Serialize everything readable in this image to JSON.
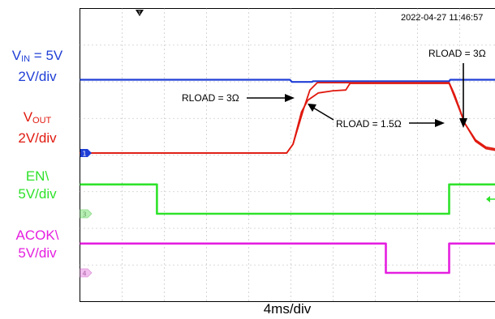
{
  "timestamp": "2022-04-27 11:46:57",
  "x_axis_label": "4ms/div",
  "colors": {
    "vin": "#1f3fd6",
    "vout": "#e0190f",
    "en": "#2ee22a",
    "acok": "#e51fe0"
  },
  "channel_labels": {
    "vin": {
      "name_main": "V",
      "name_sub": "IN",
      "name_rest": " = 5V",
      "scale": "2V/div"
    },
    "vout": {
      "name_main": "V",
      "name_sub": "OUT",
      "scale": "2V/div"
    },
    "en": {
      "name": "EN\\",
      "scale": "5V/div"
    },
    "acok": {
      "name": "ACOK\\",
      "scale": "5V/div"
    }
  },
  "channel_markers": [
    "1",
    "3",
    "4"
  ],
  "annotations": [
    "RLOAD = 3Ω",
    "RLOAD = 1.5Ω",
    "RLOAD = 3Ω"
  ],
  "chart_data": {
    "type": "line",
    "x_unit": "ms",
    "x_range": [
      0,
      40
    ],
    "series": [
      {
        "name": "VIN",
        "points": [
          [
            0,
            5.0
          ],
          [
            19.9,
            5.0
          ],
          [
            20.1,
            4.85
          ],
          [
            22.0,
            4.85
          ],
          [
            22.1,
            4.9
          ],
          [
            35.0,
            4.9
          ],
          [
            35.1,
            5.0
          ],
          [
            40,
            5.0
          ]
        ]
      },
      {
        "name": "VOUT (RLOAD = 3Ω)",
        "points": [
          [
            0,
            0
          ],
          [
            19.6,
            0
          ],
          [
            20.2,
            0.6
          ],
          [
            21.2,
            3.0
          ],
          [
            21.8,
            4.3
          ],
          [
            22.5,
            4.8
          ],
          [
            30.0,
            4.8
          ],
          [
            35.0,
            4.8
          ],
          [
            35.5,
            4.0
          ],
          [
            36.5,
            2.0
          ],
          [
            37.5,
            0.8
          ],
          [
            38.5,
            0.3
          ],
          [
            40,
            0.1
          ]
        ]
      },
      {
        "name": "VOUT (RLOAD = 1.5Ω)",
        "points": [
          [
            0,
            0
          ],
          [
            19.6,
            0
          ],
          [
            20.2,
            0.6
          ],
          [
            21.0,
            2.8
          ],
          [
            21.6,
            3.6
          ],
          [
            22.6,
            4.1
          ],
          [
            24.0,
            4.25
          ],
          [
            25.2,
            4.3
          ],
          [
            25.6,
            4.75
          ],
          [
            35.0,
            4.75
          ],
          [
            35.2,
            4.4
          ],
          [
            36.5,
            2.0
          ],
          [
            37.5,
            0.9
          ],
          [
            38.5,
            0.4
          ],
          [
            40,
            0.2
          ]
        ]
      },
      {
        "name": "EN\\",
        "points": [
          [
            0,
            5.0
          ],
          [
            7.3,
            5.0
          ],
          [
            7.3,
            0
          ],
          [
            35.0,
            0
          ],
          [
            35.0,
            5.0
          ],
          [
            40,
            5.0
          ]
        ]
      },
      {
        "name": "ACOK\\",
        "points": [
          [
            0,
            5.0
          ],
          [
            29.0,
            5.0
          ],
          [
            29.0,
            0
          ],
          [
            35.0,
            0
          ],
          [
            35.0,
            5.0
          ],
          [
            40,
            5.0
          ]
        ]
      }
    ]
  }
}
